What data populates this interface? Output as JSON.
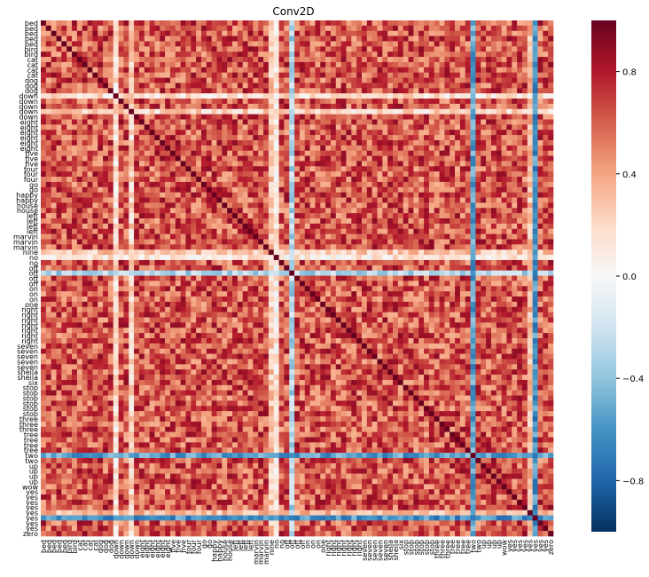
{
  "chart_data": {
    "type": "heatmap",
    "title": "Conv2D",
    "row_labels": [
      "bed",
      "bed",
      "bed",
      "bed",
      "bed",
      "bird",
      "bird",
      "cat",
      "cat",
      "cat",
      "cat",
      "dog",
      "dog",
      "dog",
      "down",
      "down",
      "down",
      "down",
      "down",
      "eight",
      "eight",
      "eight",
      "eight",
      "eight",
      "eight",
      "five",
      "five",
      "five",
      "four",
      "four",
      "four",
      "go",
      "go",
      "happy",
      "happy",
      "house",
      "house",
      "left",
      "left",
      "left",
      "left",
      "marvin",
      "marvin",
      "marvin",
      "nine",
      "no",
      "no",
      "off",
      "off",
      "off",
      "off",
      "on",
      "on",
      "on",
      "one",
      "right",
      "right",
      "right",
      "right",
      "right",
      "right",
      "right",
      "seven",
      "seven",
      "seven",
      "seven",
      "seven",
      "sheila",
      "sheila",
      "six",
      "stop",
      "stop",
      "stop",
      "stop",
      "stop",
      "stop",
      "three",
      "three",
      "three",
      "tree",
      "tree",
      "tree",
      "tree",
      "two",
      "two",
      "up",
      "up",
      "up",
      "up",
      "wow",
      "yes",
      "yes",
      "yes",
      "yes",
      "yes",
      "yes",
      "yes",
      "yes",
      "zero"
    ],
    "col_labels": [
      "bed",
      "bed",
      "bed",
      "bed",
      "bed",
      "bird",
      "bird",
      "cat",
      "cat",
      "cat",
      "cat",
      "dog",
      "dog",
      "dog",
      "down",
      "down",
      "down",
      "down",
      "down",
      "eight",
      "eight",
      "eight",
      "eight",
      "eight",
      "eight",
      "five",
      "five",
      "five",
      "four",
      "four",
      "four",
      "go",
      "go",
      "happy",
      "happy",
      "house",
      "house",
      "left",
      "left",
      "left",
      "left",
      "marvin",
      "marvin",
      "marvin",
      "nine",
      "no",
      "no",
      "off",
      "off",
      "off",
      "off",
      "on",
      "on",
      "on",
      "one",
      "right",
      "right",
      "right",
      "right",
      "right",
      "right",
      "right",
      "seven",
      "seven",
      "seven",
      "seven",
      "seven",
      "sheila",
      "sheila",
      "six",
      "stop",
      "stop",
      "stop",
      "stop",
      "stop",
      "stop",
      "three",
      "three",
      "three",
      "tree",
      "tree",
      "tree",
      "tree",
      "two",
      "two",
      "up",
      "up",
      "up",
      "up",
      "wow",
      "yes",
      "yes",
      "yes",
      "yes",
      "yes",
      "yes",
      "yes",
      "yes",
      "zero"
    ],
    "diagonal_value": 1.0,
    "special_rows": {
      "14": 0.15,
      "17": 0.2,
      "44": 0.25,
      "45": 0.1,
      "48": -0.3,
      "83": -0.55,
      "94": 0.3,
      "95": -0.6
    },
    "colorbar": {
      "vmin": -1.0,
      "vmax": 1.0,
      "ticks": [
        -0.8,
        -0.4,
        0.0,
        0.4,
        0.8
      ],
      "tick_labels": [
        "−0.8",
        "−0.4",
        "0.0",
        "0.4",
        "0.8"
      ],
      "colormap": "RdBu_r"
    },
    "value_summary": "Pairwise correlation matrix of Conv2D embeddings; most off-diagonal values between 0.3 and 0.9, a few rows/columns near 0 or negative (e.g. 'two' around -0.5)."
  }
}
